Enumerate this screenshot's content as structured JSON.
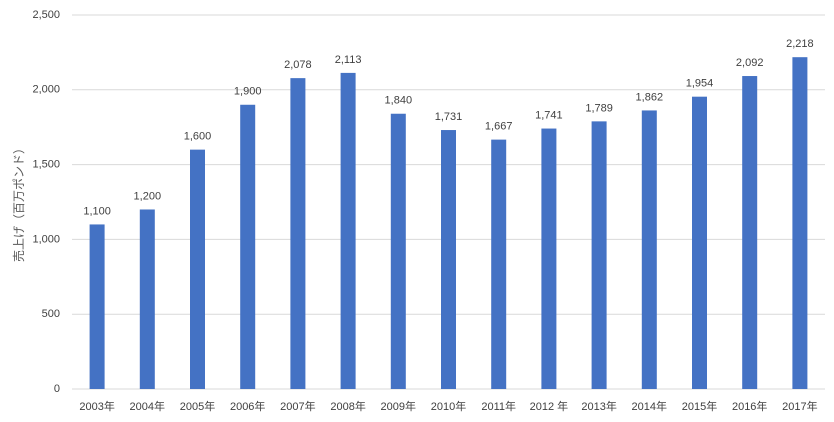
{
  "chart_data": {
    "type": "bar",
    "y_label": "売上げ（百万ポンド）",
    "categories": [
      "2003年",
      "2004年",
      "2005年",
      "2006年",
      "2007年",
      "2008年",
      "2009年",
      "2010年",
      "2011年",
      "2012 年",
      "2013年",
      "2014年",
      "2015年",
      "2016年",
      "2017年"
    ],
    "values": [
      1100,
      1200,
      1600,
      1900,
      2078,
      2113,
      1840,
      1731,
      1667,
      1741,
      1789,
      1862,
      1954,
      2092,
      2218
    ],
    "value_labels": [
      "1,100",
      "1,200",
      "1,600",
      "1,900",
      "2,078",
      "2,113",
      "1,840",
      "1,731",
      "1,667",
      "1,741",
      "1,789",
      "1,862",
      "1,954",
      "2,092",
      "2,218"
    ],
    "color": "#4472c4",
    "ylim": [
      0,
      2500
    ],
    "yticks": [
      0,
      500,
      {
        "value": 1000,
        "label": "1,000"
      },
      {
        "value": 1500,
        "label": "1,500"
      },
      {
        "value": 2000,
        "label": "2,000"
      },
      {
        "value": 2500,
        "label": "2,500"
      }
    ],
    "grid": true
  }
}
